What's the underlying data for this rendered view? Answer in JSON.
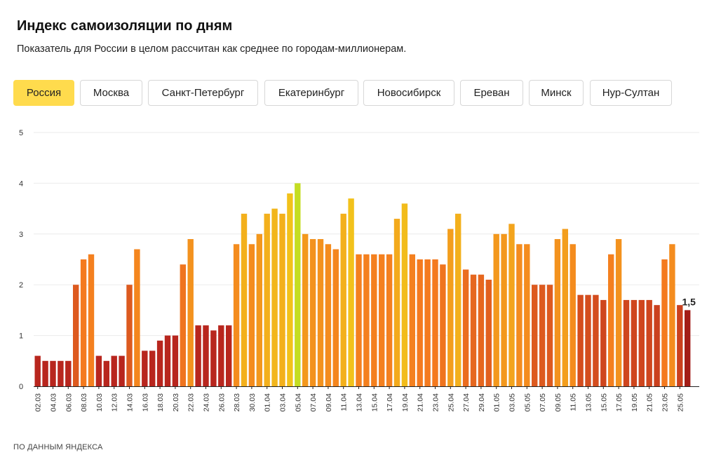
{
  "header": {
    "title": "Индекс самоизоляции по дням",
    "subtitle": "Показатель для России в целом рассчитан как среднее по городам-миллионерам."
  },
  "tabs": [
    {
      "label": "Россия",
      "active": true
    },
    {
      "label": "Москва",
      "active": false
    },
    {
      "label": "Санкт-Петербург",
      "active": false
    },
    {
      "label": "Екатеринбург",
      "active": false
    },
    {
      "label": "Новосибирск",
      "active": false
    },
    {
      "label": "Ереван",
      "active": false
    },
    {
      "label": "Минск",
      "active": false
    },
    {
      "label": "Нур-Султан",
      "active": false
    }
  ],
  "footer": {
    "source": "ПО ДАННЫМ ЯНДЕКСА"
  },
  "colors": {
    "active_tab": "#ffdb4d",
    "low": "#b8261e",
    "mid": "#f47a1f",
    "high": "#f2c21b",
    "peak": "#c4dd22",
    "last_bar": "#a31d17"
  },
  "chart_data": {
    "type": "bar",
    "title": "Индекс самоизоляции по дням",
    "ylim": [
      0,
      5
    ],
    "yticks": [
      0,
      1,
      2,
      3,
      4,
      5
    ],
    "grid": true,
    "categories": [
      "02.03",
      "03.03",
      "04.03",
      "05.03",
      "06.03",
      "07.03",
      "08.03",
      "09.03",
      "10.03",
      "11.03",
      "12.03",
      "13.03",
      "14.03",
      "15.03",
      "16.03",
      "17.03",
      "18.03",
      "19.03",
      "20.03",
      "21.03",
      "22.03",
      "23.03",
      "24.03",
      "25.03",
      "26.03",
      "27.03",
      "28.03",
      "29.03",
      "30.03",
      "31.03",
      "01.04",
      "02.04",
      "03.04",
      "04.04",
      "05.04",
      "06.04",
      "07.04",
      "08.04",
      "09.04",
      "10.04",
      "11.04",
      "12.04",
      "13.04",
      "14.04",
      "15.04",
      "16.04",
      "17.04",
      "18.04",
      "19.04",
      "20.04",
      "21.04",
      "22.04",
      "23.04",
      "24.04",
      "25.04",
      "26.04",
      "27.04",
      "28.04",
      "29.04",
      "30.04",
      "01.05",
      "02.05",
      "03.05",
      "04.05",
      "05.05",
      "06.05",
      "07.05",
      "08.05",
      "09.05",
      "10.05",
      "11.05",
      "12.05",
      "13.05",
      "14.05",
      "15.05",
      "16.05",
      "17.05",
      "18.05",
      "19.05",
      "20.05",
      "21.05",
      "22.05",
      "23.05",
      "24.05",
      "25.05",
      "26.05"
    ],
    "xtick_labels": [
      "02.03",
      "04.03",
      "06.03",
      "08.03",
      "10.03",
      "12.03",
      "14.03",
      "16.03",
      "18.03",
      "20.03",
      "22.03",
      "24.03",
      "26.03",
      "28.03",
      "30.03",
      "01.04",
      "03.04",
      "05.04",
      "07.04",
      "09.04",
      "11.04",
      "13.04",
      "15.04",
      "17.04",
      "19.04",
      "21.04",
      "23.04",
      "25.04",
      "27.04",
      "29.04",
      "01.05",
      "03.05",
      "05.05",
      "07.05",
      "09.05",
      "11.05",
      "13.05",
      "15.05",
      "17.05",
      "19.05",
      "21.05",
      "23.05",
      "25.05"
    ],
    "values": [
      0.6,
      0.5,
      0.5,
      0.5,
      0.5,
      2.0,
      2.5,
      2.6,
      0.6,
      0.5,
      0.6,
      0.6,
      2.0,
      2.7,
      0.7,
      0.7,
      0.9,
      1.0,
      1.0,
      2.4,
      2.9,
      1.2,
      1.2,
      1.1,
      1.2,
      1.2,
      2.8,
      3.4,
      2.8,
      3.0,
      3.4,
      3.5,
      3.4,
      3.8,
      4.0,
      3.0,
      2.9,
      2.9,
      2.8,
      2.7,
      3.4,
      3.7,
      2.6,
      2.6,
      2.6,
      2.6,
      2.6,
      3.3,
      3.6,
      2.6,
      2.5,
      2.5,
      2.5,
      2.4,
      3.1,
      3.4,
      2.3,
      2.2,
      2.2,
      2.1,
      3.0,
      3.0,
      3.2,
      2.8,
      2.8,
      2.0,
      2.0,
      2.0,
      2.9,
      3.1,
      2.8,
      1.8,
      1.8,
      1.8,
      1.7,
      2.6,
      2.9,
      1.7,
      1.7,
      1.7,
      1.7,
      1.6,
      2.5,
      2.8,
      1.6,
      1.5
    ],
    "last_value_label": "1,5"
  }
}
